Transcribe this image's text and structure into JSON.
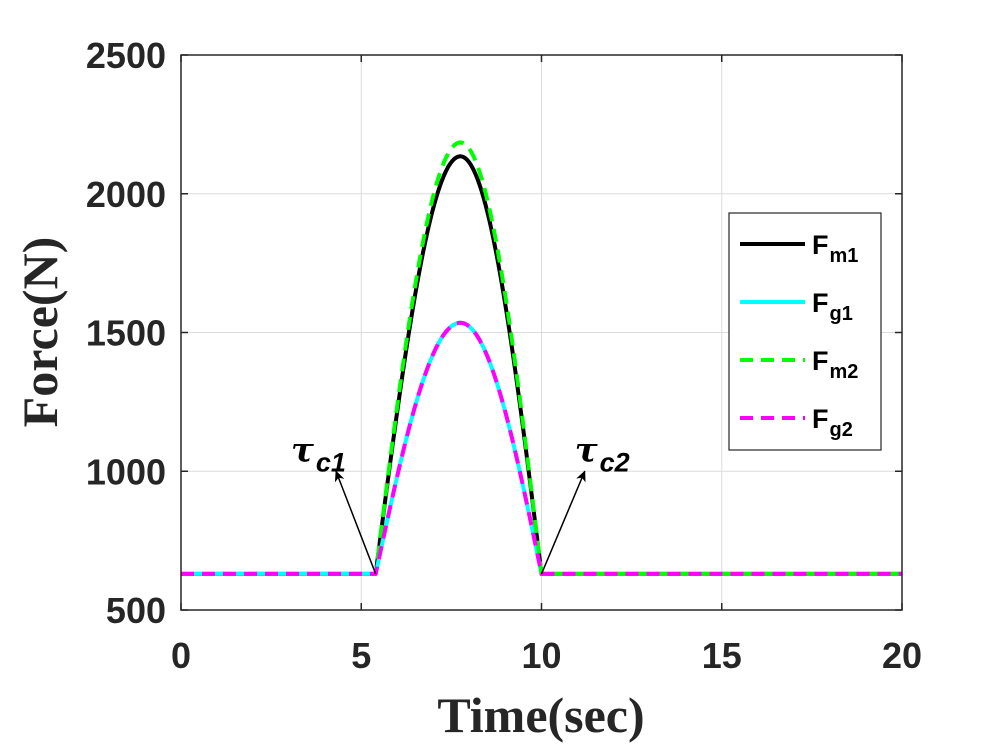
{
  "chart_data": {
    "type": "line",
    "xlabel": "Time(sec)",
    "ylabel": "Force(N)",
    "xlim": [
      0,
      20
    ],
    "ylim": [
      500,
      2500
    ],
    "xticks": [
      0,
      5,
      10,
      15,
      20
    ],
    "yticks": [
      500,
      1000,
      1500,
      2000,
      2500
    ],
    "grid": true,
    "legend_position": "upper-right",
    "event_times": [
      5.4,
      10
    ],
    "baseline_force": 630,
    "series": [
      {
        "name": "F",
        "sub": "m1",
        "color": "#000000",
        "style": "solid",
        "peak_x": 7.75,
        "peak_y": 2135
      },
      {
        "name": "F",
        "sub": "g1",
        "color": "#00ffff",
        "style": "solid",
        "peak_x": 7.75,
        "peak_y": 1535
      },
      {
        "name": "F",
        "sub": "m2",
        "color": "#00ff00",
        "style": "dashed",
        "peak_x": 7.75,
        "peak_y": 2185
      },
      {
        "name": "F",
        "sub": "g2",
        "color": "#ff00ff",
        "style": "dashed",
        "peak_x": 7.75,
        "peak_y": 1535
      }
    ],
    "annotations": [
      {
        "symbol": "τ",
        "sub": "c1",
        "point": [
          5.4,
          630
        ],
        "arrow_to": [
          4.3,
          1000
        ]
      },
      {
        "symbol": "τ",
        "sub": "c2",
        "point": [
          10,
          630
        ],
        "arrow_to": [
          11.2,
          1000
        ]
      }
    ]
  }
}
